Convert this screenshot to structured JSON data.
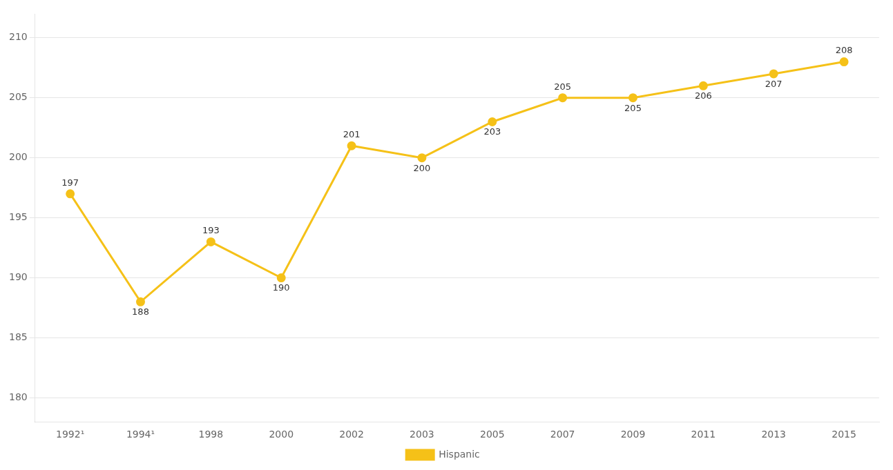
{
  "chart_data": {
    "type": "line",
    "categories": [
      "1992¹",
      "1994¹",
      "1998",
      "2000",
      "2002",
      "2003",
      "2005",
      "2007",
      "2009",
      "2011",
      "2013",
      "2015"
    ],
    "series": [
      {
        "name": "Hispanic",
        "color": "#F5C118",
        "values": [
          197,
          188,
          193,
          190,
          201,
          200,
          203,
          205,
          205,
          206,
          207,
          208
        ]
      }
    ],
    "ylim": [
      178,
      212
    ],
    "yticks": [
      180,
      185,
      190,
      195,
      200,
      205,
      210
    ],
    "grid": "y",
    "legend": "bottom",
    "data_labels": true,
    "marker": "circle"
  }
}
